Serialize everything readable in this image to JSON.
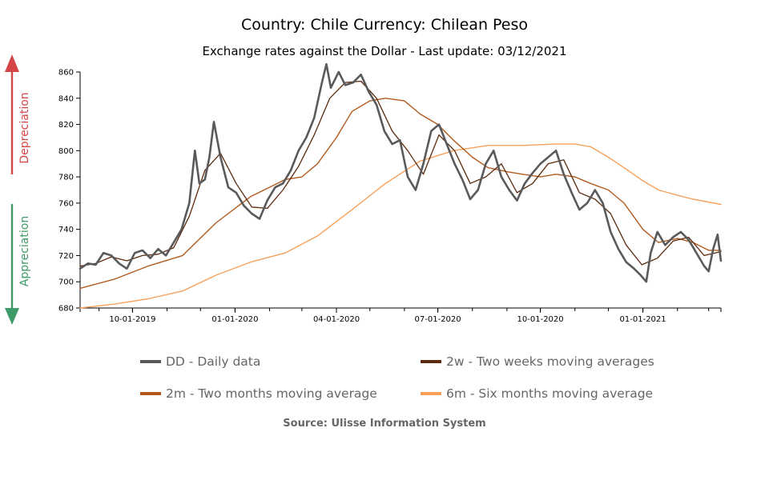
{
  "header": {
    "title": "Country: Chile Currency: Chilean Peso",
    "subtitle": "Exchange rates against the Dollar - Last update: 03/12/2021"
  },
  "side_labels": {
    "depreciation": "Depreciation",
    "appreciation": "Appreciation",
    "depreciation_color": "#d64545",
    "appreciation_color": "#3e9a67"
  },
  "source": "Source: Ulisse Information System",
  "chart_data": {
    "type": "line",
    "title": "Country: Chile Currency: Chilean Peso",
    "subtitle": "Exchange rates against the Dollar - Last update: 03/12/2021",
    "ylim": [
      680,
      860
    ],
    "yticks": [
      680,
      700,
      720,
      740,
      760,
      780,
      800,
      820,
      840,
      860
    ],
    "x_range": [
      "2019-08-15",
      "2021-03-12"
    ],
    "xticks": [
      {
        "date": "2019-10-01",
        "label": "10-01-2019"
      },
      {
        "date": "2020-01-01",
        "label": "01-01-2020"
      },
      {
        "date": "2020-04-01",
        "label": "04-01-2020"
      },
      {
        "date": "2020-07-01",
        "label": "07-01-2020"
      },
      {
        "date": "2020-10-01",
        "label": "10-01-2020"
      },
      {
        "date": "2021-01-01",
        "label": "01-01-2021"
      }
    ],
    "grid": false,
    "legend_position": "bottom",
    "series": [
      {
        "key": "dd",
        "name": "DD - Daily data",
        "color": "#5a5a5a",
        "width": 2.6,
        "points": [
          [
            "2019-08-15",
            710
          ],
          [
            "2019-08-22",
            714
          ],
          [
            "2019-08-29",
            713
          ],
          [
            "2019-09-05",
            722
          ],
          [
            "2019-09-12",
            720
          ],
          [
            "2019-09-19",
            714
          ],
          [
            "2019-09-26",
            710
          ],
          [
            "2019-10-03",
            722
          ],
          [
            "2019-10-10",
            724
          ],
          [
            "2019-10-17",
            718
          ],
          [
            "2019-10-24",
            725
          ],
          [
            "2019-10-31",
            720
          ],
          [
            "2019-11-07",
            730
          ],
          [
            "2019-11-14",
            740
          ],
          [
            "2019-11-21",
            760
          ],
          [
            "2019-11-26",
            800
          ],
          [
            "2019-11-30",
            775
          ],
          [
            "2019-12-05",
            778
          ],
          [
            "2019-12-09",
            795
          ],
          [
            "2019-12-13",
            822
          ],
          [
            "2019-12-19",
            795
          ],
          [
            "2019-12-26",
            772
          ],
          [
            "2020-01-02",
            768
          ],
          [
            "2020-01-09",
            758
          ],
          [
            "2020-01-16",
            752
          ],
          [
            "2020-01-23",
            748
          ],
          [
            "2020-01-30",
            762
          ],
          [
            "2020-02-06",
            772
          ],
          [
            "2020-02-13",
            775
          ],
          [
            "2020-02-20",
            785
          ],
          [
            "2020-02-27",
            800
          ],
          [
            "2020-03-05",
            810
          ],
          [
            "2020-03-12",
            825
          ],
          [
            "2020-03-19",
            852
          ],
          [
            "2020-03-23",
            866
          ],
          [
            "2020-03-27",
            848
          ],
          [
            "2020-04-03",
            860
          ],
          [
            "2020-04-09",
            850
          ],
          [
            "2020-04-16",
            852
          ],
          [
            "2020-04-23",
            858
          ],
          [
            "2020-04-30",
            845
          ],
          [
            "2020-05-07",
            835
          ],
          [
            "2020-05-14",
            815
          ],
          [
            "2020-05-21",
            805
          ],
          [
            "2020-05-28",
            808
          ],
          [
            "2020-06-04",
            780
          ],
          [
            "2020-06-11",
            770
          ],
          [
            "2020-06-18",
            790
          ],
          [
            "2020-06-25",
            815
          ],
          [
            "2020-07-02",
            820
          ],
          [
            "2020-07-09",
            805
          ],
          [
            "2020-07-16",
            790
          ],
          [
            "2020-07-23",
            778
          ],
          [
            "2020-07-30",
            763
          ],
          [
            "2020-08-06",
            770
          ],
          [
            "2020-08-13",
            790
          ],
          [
            "2020-08-20",
            800
          ],
          [
            "2020-08-27",
            780
          ],
          [
            "2020-09-03",
            770
          ],
          [
            "2020-09-10",
            762
          ],
          [
            "2020-09-17",
            775
          ],
          [
            "2020-09-24",
            783
          ],
          [
            "2020-10-01",
            790
          ],
          [
            "2020-10-08",
            795
          ],
          [
            "2020-10-15",
            800
          ],
          [
            "2020-10-22",
            782
          ],
          [
            "2020-10-29",
            768
          ],
          [
            "2020-11-05",
            755
          ],
          [
            "2020-11-12",
            760
          ],
          [
            "2020-11-19",
            770
          ],
          [
            "2020-11-26",
            760
          ],
          [
            "2020-12-03",
            738
          ],
          [
            "2020-12-10",
            725
          ],
          [
            "2020-12-17",
            715
          ],
          [
            "2020-12-24",
            710
          ],
          [
            "2020-12-30",
            705
          ],
          [
            "2021-01-04",
            700
          ],
          [
            "2021-01-08",
            722
          ],
          [
            "2021-01-14",
            738
          ],
          [
            "2021-01-21",
            728
          ],
          [
            "2021-01-28",
            734
          ],
          [
            "2021-02-04",
            738
          ],
          [
            "2021-02-11",
            732
          ],
          [
            "2021-02-18",
            722
          ],
          [
            "2021-02-25",
            712
          ],
          [
            "2021-03-01",
            708
          ],
          [
            "2021-03-05",
            725
          ],
          [
            "2021-03-09",
            736
          ],
          [
            "2021-03-12",
            716
          ]
        ]
      },
      {
        "key": "w2",
        "name": "2w - Two weeks moving averages",
        "color": "#5c2a0e",
        "width": 1.3,
        "points": [
          [
            "2019-08-15",
            712
          ],
          [
            "2019-08-29",
            714
          ],
          [
            "2019-09-12",
            719
          ],
          [
            "2019-09-26",
            716
          ],
          [
            "2019-10-10",
            720
          ],
          [
            "2019-10-24",
            721
          ],
          [
            "2019-11-07",
            726
          ],
          [
            "2019-11-21",
            750
          ],
          [
            "2019-12-05",
            785
          ],
          [
            "2019-12-19",
            798
          ],
          [
            "2020-01-02",
            775
          ],
          [
            "2020-01-16",
            757
          ],
          [
            "2020-01-30",
            756
          ],
          [
            "2020-02-13",
            770
          ],
          [
            "2020-02-27",
            788
          ],
          [
            "2020-03-12",
            812
          ],
          [
            "2020-03-26",
            840
          ],
          [
            "2020-04-09",
            852
          ],
          [
            "2020-04-23",
            853
          ],
          [
            "2020-05-07",
            840
          ],
          [
            "2020-05-21",
            815
          ],
          [
            "2020-06-04",
            800
          ],
          [
            "2020-06-18",
            782
          ],
          [
            "2020-07-02",
            812
          ],
          [
            "2020-07-16",
            800
          ],
          [
            "2020-07-30",
            775
          ],
          [
            "2020-08-13",
            780
          ],
          [
            "2020-08-27",
            790
          ],
          [
            "2020-09-10",
            768
          ],
          [
            "2020-09-24",
            775
          ],
          [
            "2020-10-08",
            790
          ],
          [
            "2020-10-22",
            793
          ],
          [
            "2020-11-05",
            768
          ],
          [
            "2020-11-19",
            763
          ],
          [
            "2020-12-03",
            752
          ],
          [
            "2020-12-17",
            728
          ],
          [
            "2020-12-31",
            713
          ],
          [
            "2021-01-14",
            718
          ],
          [
            "2021-01-28",
            731
          ],
          [
            "2021-02-11",
            734
          ],
          [
            "2021-02-25",
            720
          ],
          [
            "2021-03-12",
            723
          ]
        ]
      },
      {
        "key": "m2",
        "name": "2m - Two months moving average",
        "color": "#b25a1e",
        "width": 1.4,
        "points": [
          [
            "2019-08-15",
            695
          ],
          [
            "2019-09-15",
            702
          ],
          [
            "2019-10-15",
            712
          ],
          [
            "2019-11-15",
            720
          ],
          [
            "2019-12-15",
            745
          ],
          [
            "2020-01-15",
            765
          ],
          [
            "2020-02-15",
            778
          ],
          [
            "2020-03-01",
            780
          ],
          [
            "2020-03-15",
            790
          ],
          [
            "2020-04-01",
            810
          ],
          [
            "2020-04-15",
            830
          ],
          [
            "2020-05-01",
            838
          ],
          [
            "2020-05-15",
            840
          ],
          [
            "2020-06-01",
            838
          ],
          [
            "2020-06-15",
            828
          ],
          [
            "2020-07-01",
            820
          ],
          [
            "2020-07-15",
            808
          ],
          [
            "2020-08-01",
            795
          ],
          [
            "2020-08-15",
            787
          ],
          [
            "2020-09-01",
            784
          ],
          [
            "2020-09-15",
            782
          ],
          [
            "2020-10-01",
            780
          ],
          [
            "2020-10-15",
            782
          ],
          [
            "2020-11-01",
            780
          ],
          [
            "2020-11-15",
            775
          ],
          [
            "2020-12-01",
            770
          ],
          [
            "2020-12-15",
            760
          ],
          [
            "2021-01-01",
            740
          ],
          [
            "2021-01-15",
            730
          ],
          [
            "2021-02-01",
            733
          ],
          [
            "2021-02-15",
            730
          ],
          [
            "2021-03-01",
            724
          ],
          [
            "2021-03-12",
            724
          ]
        ]
      },
      {
        "key": "m6",
        "name": "6m - Six months moving average",
        "color": "#f7a05a",
        "width": 1.4,
        "points": [
          [
            "2019-08-15",
            680
          ],
          [
            "2019-09-15",
            683
          ],
          [
            "2019-10-15",
            687
          ],
          [
            "2019-11-15",
            693
          ],
          [
            "2019-12-15",
            705
          ],
          [
            "2020-01-15",
            715
          ],
          [
            "2020-02-15",
            722
          ],
          [
            "2020-03-15",
            735
          ],
          [
            "2020-04-15",
            755
          ],
          [
            "2020-05-15",
            775
          ],
          [
            "2020-06-15",
            792
          ],
          [
            "2020-07-15",
            800
          ],
          [
            "2020-08-15",
            804
          ],
          [
            "2020-09-15",
            804
          ],
          [
            "2020-10-15",
            805
          ],
          [
            "2020-11-01",
            805
          ],
          [
            "2020-11-15",
            803
          ],
          [
            "2020-12-01",
            795
          ],
          [
            "2020-12-15",
            787
          ],
          [
            "2021-01-01",
            777
          ],
          [
            "2021-01-15",
            770
          ],
          [
            "2021-02-01",
            766
          ],
          [
            "2021-02-15",
            763
          ],
          [
            "2021-03-12",
            759
          ]
        ]
      }
    ]
  }
}
